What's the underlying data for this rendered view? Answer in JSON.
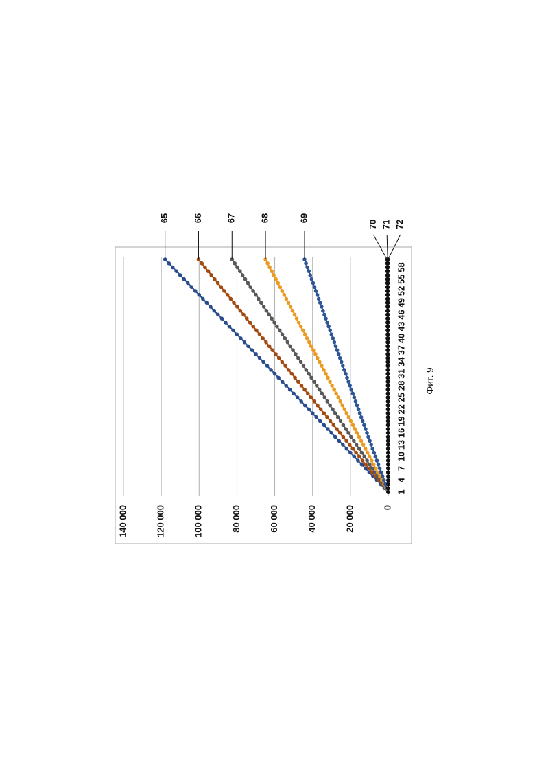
{
  "chart_data": {
    "type": "line",
    "caption": "Фиг. 9",
    "categories": [
      1,
      null,
      null,
      4,
      null,
      null,
      7,
      null,
      null,
      10,
      null,
      null,
      13,
      null,
      null,
      16,
      null,
      null,
      19,
      null,
      null,
      22,
      null,
      null,
      25,
      null,
      null,
      28,
      null,
      null,
      31,
      null,
      null,
      34,
      null,
      null,
      37,
      null,
      null,
      40,
      null,
      null,
      43,
      null,
      null,
      46,
      null,
      null,
      49,
      null,
      null,
      52,
      null,
      null,
      55,
      null,
      null,
      58,
      null,
      null
    ],
    "ylim": [
      0,
      140000
    ],
    "yticks": [
      0,
      {
        "value": 20000,
        "label": "20 000"
      },
      {
        "value": 40000,
        "label": "40 000"
      },
      {
        "value": 60000,
        "label": "60 000"
      },
      {
        "value": 80000,
        "label": "80 000"
      },
      {
        "value": 100000,
        "label": "100 000"
      },
      {
        "value": 120000,
        "label": "120 000"
      },
      {
        "value": 140000,
        "label": "140 000"
      }
    ],
    "grid": true,
    "series": [
      {
        "name": "65",
        "color": "#2b4c8c",
        "values": [
          0,
          2000,
          4000,
          6000,
          8000,
          10000,
          12000,
          14000,
          16000,
          18000,
          20000,
          22000,
          24000,
          26000,
          28000,
          30000,
          32000,
          34000,
          36000,
          38000,
          40000,
          42000,
          44000,
          46000,
          48000,
          50000,
          52000,
          54000,
          56000,
          58000,
          60000,
          62000,
          64000,
          66000,
          68000,
          70000,
          72000,
          74000,
          76000,
          78000,
          80000,
          82000,
          84000,
          86000,
          88000,
          90000,
          92000,
          94000,
          96000,
          98000,
          100000,
          102000,
          104000,
          106000,
          108000,
          110000,
          112000,
          114000,
          116000,
          118000
        ]
      },
      {
        "name": "66",
        "color": "#a24a10",
        "values": [
          0,
          1700,
          3400,
          5100,
          6800,
          8500,
          10200,
          11900,
          13600,
          15300,
          17000,
          18700,
          20400,
          22100,
          23800,
          25500,
          27200,
          28900,
          30600,
          32300,
          34000,
          35700,
          37400,
          39100,
          40800,
          42500,
          44200,
          45900,
          47600,
          49300,
          51000,
          52700,
          54400,
          56100,
          57800,
          59500,
          61200,
          62900,
          64600,
          66300,
          68000,
          69700,
          71400,
          73100,
          74800,
          76500,
          78200,
          79900,
          81600,
          83300,
          85000,
          86700,
          88400,
          90100,
          91800,
          93500,
          95200,
          96900,
          98600,
          100300
        ]
      },
      {
        "name": "67",
        "color": "#595959",
        "values": [
          0,
          1400,
          2800,
          4200,
          5600,
          7000,
          8400,
          9800,
          11200,
          12600,
          14000,
          15400,
          16800,
          18200,
          19600,
          21000,
          22400,
          23800,
          25200,
          26600,
          28000,
          29400,
          30800,
          32200,
          33600,
          35000,
          36400,
          37800,
          39200,
          40600,
          42000,
          43400,
          44800,
          46200,
          47600,
          49000,
          50400,
          51800,
          53200,
          54600,
          56000,
          57400,
          58800,
          60200,
          61600,
          63000,
          64400,
          65800,
          67200,
          68600,
          70000,
          71400,
          72800,
          74200,
          75600,
          77000,
          78400,
          79800,
          81200,
          82600
        ]
      },
      {
        "name": "68",
        "color": "#eb9b22",
        "values": [
          0,
          1100,
          2200,
          3300,
          4400,
          5500,
          6600,
          7700,
          8800,
          9900,
          11000,
          12100,
          13200,
          14300,
          15400,
          16500,
          17600,
          18700,
          19800,
          20900,
          22000,
          23100,
          24200,
          25300,
          26400,
          27500,
          28600,
          29700,
          30800,
          31900,
          33000,
          34100,
          35200,
          36300,
          37400,
          38500,
          39600,
          40700,
          41800,
          42900,
          44000,
          45100,
          46200,
          47300,
          48400,
          49500,
          50600,
          51700,
          52800,
          53900,
          55000,
          56100,
          57200,
          58300,
          59400,
          60500,
          61600,
          62700,
          63800,
          64900
        ]
      },
      {
        "name": "69",
        "color": "#2e5595",
        "values": [
          0,
          750,
          1500,
          2250,
          3000,
          3750,
          4500,
          5250,
          6000,
          6750,
          7500,
          8250,
          9000,
          9750,
          10500,
          11250,
          12000,
          12750,
          13500,
          14250,
          15000,
          15750,
          16500,
          17250,
          18000,
          18750,
          19500,
          20250,
          21000,
          21750,
          22500,
          23250,
          24000,
          24750,
          25500,
          26250,
          27000,
          27750,
          28500,
          29250,
          30000,
          30750,
          31500,
          32250,
          33000,
          33750,
          34500,
          35250,
          36000,
          36750,
          37500,
          38250,
          39000,
          39750,
          40500,
          41250,
          42000,
          42750,
          43500,
          44250
        ]
      },
      {
        "name": "70",
        "color": "#111111",
        "values": [
          0,
          10,
          20,
          30,
          40,
          50,
          60,
          70,
          80,
          90,
          100,
          110,
          120,
          130,
          140,
          150,
          160,
          170,
          180,
          190,
          200,
          210,
          220,
          230,
          240,
          250,
          260,
          270,
          280,
          290,
          300,
          310,
          320,
          330,
          340,
          350,
          360,
          370,
          380,
          390,
          400,
          410,
          420,
          430,
          440,
          450,
          460,
          470,
          480,
          490,
          500,
          510,
          520,
          530,
          540,
          550,
          560,
          570,
          580,
          590
        ]
      },
      {
        "name": "71",
        "color": "#111111",
        "values": [
          0,
          5,
          10,
          15,
          20,
          25,
          30,
          35,
          40,
          45,
          50,
          55,
          60,
          65,
          70,
          75,
          80,
          85,
          90,
          95,
          100,
          105,
          110,
          115,
          120,
          125,
          130,
          135,
          140,
          145,
          150,
          155,
          160,
          165,
          170,
          175,
          180,
          185,
          190,
          195,
          200,
          205,
          210,
          215,
          220,
          225,
          230,
          235,
          240,
          245,
          250,
          255,
          260,
          265,
          270,
          275,
          280,
          285,
          290,
          295
        ]
      },
      {
        "name": "72",
        "color": "#111111",
        "values": [
          0,
          2,
          4,
          6,
          8,
          10,
          12,
          14,
          16,
          18,
          20,
          22,
          24,
          26,
          28,
          30,
          32,
          34,
          36,
          38,
          40,
          42,
          44,
          46,
          48,
          50,
          52,
          54,
          56,
          58,
          60,
          62,
          64,
          66,
          68,
          70,
          72,
          74,
          76,
          78,
          80,
          82,
          84,
          86,
          88,
          90,
          92,
          94,
          96,
          98,
          100,
          102,
          104,
          106,
          108,
          110,
          112,
          114,
          116,
          118
        ]
      }
    ]
  }
}
